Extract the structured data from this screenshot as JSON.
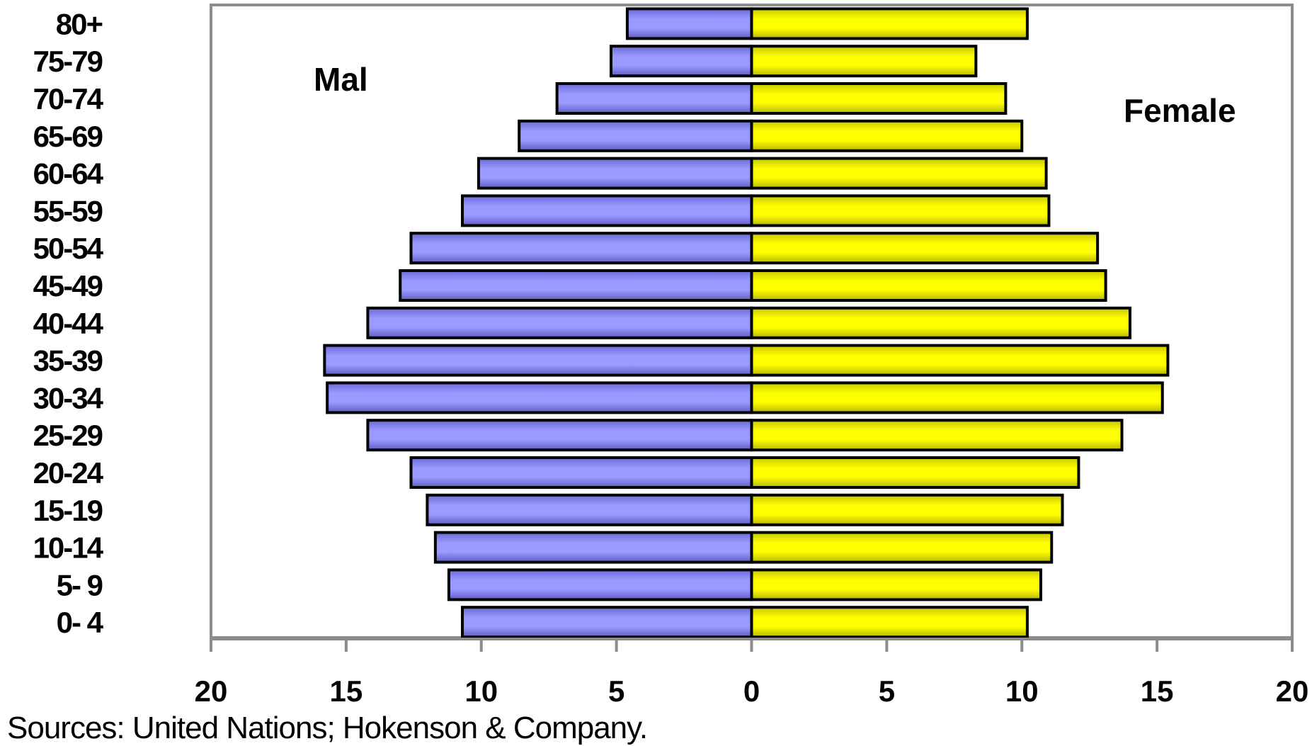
{
  "chart_data": {
    "type": "bar",
    "orientation": "horizontal",
    "subtype": "population-pyramid",
    "categories": [
      "0- 4",
      "5- 9",
      "10-14",
      "15-19",
      "20-24",
      "25-29",
      "30-34",
      "35-39",
      "40-44",
      "45-49",
      "50-54",
      "55-59",
      "60-64",
      "65-69",
      "70-74",
      "75-79",
      "80+"
    ],
    "series": [
      {
        "name": "Mal",
        "color": "#8b8bf0",
        "values": [
          10.7,
          11.2,
          11.7,
          12.0,
          12.6,
          14.2,
          15.7,
          15.8,
          14.2,
          13.0,
          12.6,
          10.7,
          10.1,
          8.6,
          7.2,
          5.2,
          4.6
        ]
      },
      {
        "name": "Female",
        "color": "#f2f200",
        "values": [
          10.2,
          10.7,
          11.1,
          11.5,
          12.1,
          13.7,
          15.2,
          15.4,
          14.0,
          13.1,
          12.8,
          11.0,
          10.9,
          10.0,
          9.4,
          8.3,
          10.2
        ]
      }
    ],
    "xticks": [
      "20",
      "15",
      "10",
      "5",
      "0",
      "5",
      "10",
      "15",
      "20"
    ],
    "xlim": [
      -20,
      20
    ],
    "grid": false,
    "legend": "inside-labels",
    "title": "",
    "xlabel": "",
    "ylabel": ""
  },
  "footer": {
    "source_note": "Sources: United Nations; Hokenson & Company."
  }
}
